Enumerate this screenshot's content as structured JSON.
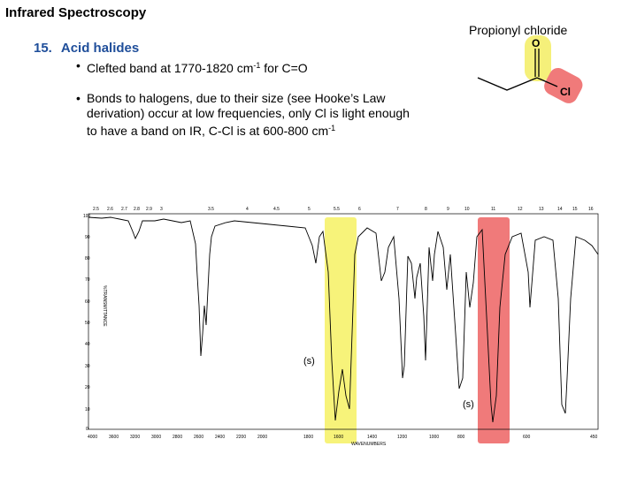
{
  "slide": {
    "title": "Infrared Spectroscopy"
  },
  "section": {
    "number": "15.",
    "title": "Acid halides"
  },
  "bullets": {
    "b1": {
      "text": "Clefted band at 1770-1820 cm",
      "sup": "-1",
      "after": " for C=O"
    },
    "b2": {
      "text": "Bonds to halogens, due to their size (see Hooke’s Law derivation) occur at low frequencies, only Cl is light enough to have a band on IR, C-Cl is at 600-800 cm",
      "sup": "-1"
    }
  },
  "molecule": {
    "name": "Propionyl chloride",
    "atom_o": "O",
    "atom_cl": "Cl",
    "highlight_o_color": "#f5f07a",
    "highlight_cl_color": "#f07a7a"
  },
  "spectrum": {
    "bottom_axis_label": "WAVENUMBERS",
    "vertical_axis_label": "%TRANSMITTANCE",
    "top_ticks": [
      "2.5",
      "2.6",
      "2.7",
      "2.8",
      "2.9",
      "3",
      "3.5",
      "4",
      "4.5",
      "5",
      "5.5",
      "6",
      "7",
      "8",
      "9",
      "10",
      "11",
      "12",
      "13",
      "14",
      "15",
      "16"
    ],
    "left_ticks": [
      "100",
      "90",
      "80",
      "70",
      "60",
      "50",
      "40",
      "30",
      "20",
      "10",
      "0"
    ],
    "bottom_ticks": [
      "4000",
      "3600",
      "3200",
      "3000",
      "2800",
      "2600",
      "2400",
      "2200",
      "2000",
      "1800",
      "1600",
      "1400",
      "1200",
      "1000",
      "800",
      "600",
      "450"
    ],
    "co_band_label": "(s)",
    "ccl_band_label": "(s)",
    "co_highlight_color": "#f7f37a",
    "ccl_highlight_color": "#f07a7a"
  }
}
